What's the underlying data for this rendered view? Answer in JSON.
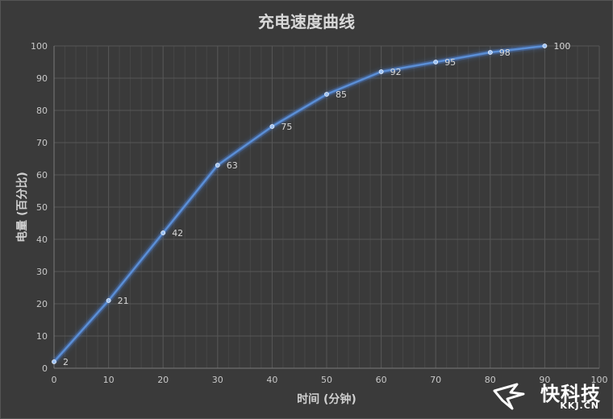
{
  "chart_data": {
    "type": "line",
    "title": "充电速度曲线",
    "xlabel": "时间 (分钟)",
    "ylabel": "电量 (百分比)",
    "xlim": [
      0,
      100
    ],
    "ylim": [
      0,
      100
    ],
    "x_ticks": [
      0,
      10,
      20,
      30,
      40,
      50,
      60,
      70,
      80,
      90,
      100
    ],
    "y_ticks": [
      0,
      10,
      20,
      30,
      40,
      50,
      60,
      70,
      80,
      90,
      100
    ],
    "grid": true,
    "series": [
      {
        "x": [
          0,
          10,
          20,
          30,
          40,
          50,
          60,
          70,
          80,
          90
        ],
        "values": [
          2,
          21,
          42,
          63,
          75,
          85,
          92,
          95,
          98,
          100
        ],
        "data_labels": [
          "2",
          "21",
          "42",
          "63",
          "75",
          "85",
          "92",
          "95",
          "98",
          "100"
        ]
      }
    ],
    "colors": {
      "line": "#5b8fd6",
      "marker": "#9fc4f5",
      "grid": "#565656",
      "background": "#3a3a3a"
    }
  },
  "watermark": {
    "brand": "快科技",
    "domain": "KKJ.CN"
  }
}
